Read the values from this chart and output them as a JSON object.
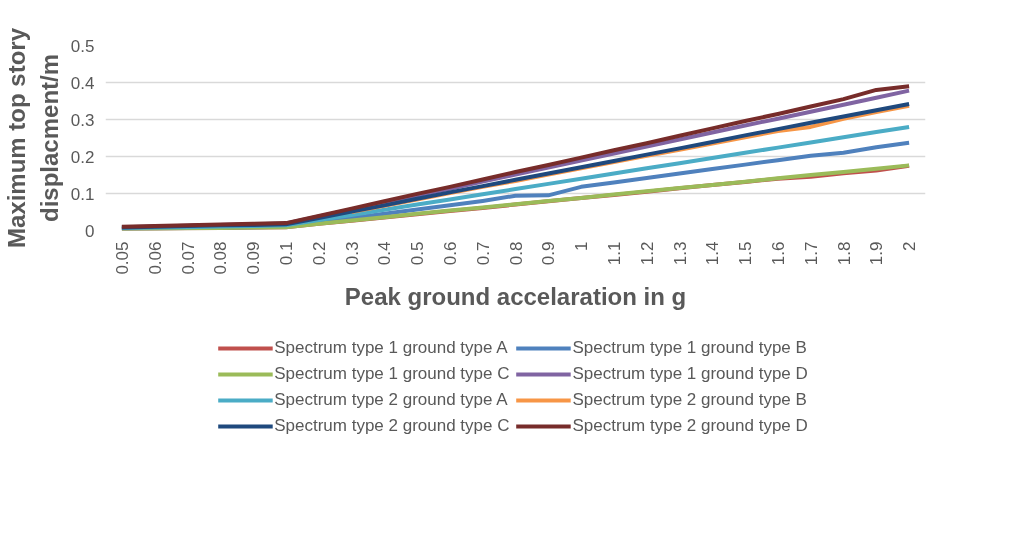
{
  "chart_data": {
    "type": "line",
    "xlabel": "Peak ground accelaration in g",
    "ylabel": "Maximum top story displacment/m",
    "categories": [
      "0.05",
      "0.06",
      "0.07",
      "0.08",
      "0.09",
      "0.1",
      "0.2",
      "0.3",
      "0.4",
      "0.5",
      "0.6",
      "0.7",
      "0.8",
      "0.9",
      "1",
      "1.1",
      "1.2",
      "1.3",
      "1.4",
      "1.5",
      "1.6",
      "1.7",
      "1.8",
      "1.9",
      "2"
    ],
    "ylim": [
      0,
      0.5
    ],
    "yticks": [
      {
        "value": 0,
        "label": "0"
      },
      0.1,
      0.2,
      0.3,
      0.4,
      0.5
    ],
    "grid": "y",
    "legend": "bottom",
    "marker": "none",
    "line_style": "solid",
    "series": [
      {
        "name": "Spectrum type 1 ground type A",
        "color": "#c0504d",
        "values": [
          0.004,
          0.005,
          0.006,
          0.007,
          0.008,
          0.009,
          0.018,
          0.026,
          0.035,
          0.044,
          0.053,
          0.061,
          0.07,
          0.079,
          0.088,
          0.096,
          0.105,
          0.114,
          0.123,
          0.131,
          0.14,
          0.145,
          0.155,
          0.162,
          0.175
        ]
      },
      {
        "name": "Spectrum type 1 ground type B",
        "color": "#4f81bd",
        "values": [
          0.005,
          0.006,
          0.007,
          0.008,
          0.009,
          0.01,
          0.022,
          0.034,
          0.045,
          0.057,
          0.068,
          0.08,
          0.094,
          0.095,
          0.118,
          0.13,
          0.142,
          0.154,
          0.166,
          0.178,
          0.19,
          0.202,
          0.21,
          0.225,
          0.237
        ]
      },
      {
        "name": "Spectrum type 1 ground type C",
        "color": "#9bbb59",
        "values": [
          0.004,
          0.005,
          0.006,
          0.007,
          0.008,
          0.009,
          0.018,
          0.027,
          0.036,
          0.045,
          0.054,
          0.062,
          0.071,
          0.08,
          0.088,
          0.097,
          0.106,
          0.115,
          0.123,
          0.132,
          0.141,
          0.15,
          0.158,
          0.167,
          0.176
        ]
      },
      {
        "name": "Spectrum type 1 ground type D",
        "color": "#8064a2",
        "values": [
          0.009,
          0.011,
          0.013,
          0.015,
          0.017,
          0.019,
          0.038,
          0.057,
          0.076,
          0.095,
          0.113,
          0.132,
          0.151,
          0.17,
          0.189,
          0.208,
          0.227,
          0.246,
          0.265,
          0.284,
          0.302,
          0.321,
          0.34,
          0.359,
          0.378
        ]
      },
      {
        "name": "Spectrum type 2 ground type A",
        "color": "#4bacc6",
        "values": [
          0.007,
          0.008,
          0.009,
          0.011,
          0.012,
          0.014,
          0.028,
          0.042,
          0.056,
          0.07,
          0.084,
          0.098,
          0.112,
          0.126,
          0.14,
          0.154,
          0.168,
          0.182,
          0.196,
          0.21,
          0.224,
          0.238,
          0.252,
          0.266,
          0.28
        ]
      },
      {
        "name": "Spectrum type 2 ground type B",
        "color": "#f79646",
        "values": [
          null,
          null,
          null,
          null,
          null,
          null,
          null,
          0.05,
          0.067,
          0.084,
          0.101,
          0.118,
          0.134,
          0.151,
          0.168,
          0.185,
          0.202,
          0.218,
          0.235,
          0.252,
          0.269,
          0.28,
          0.302,
          0.32,
          0.337
        ]
      },
      {
        "name": "Spectrum type 2 ground type C",
        "color": "#1f497d",
        "values": [
          0.008,
          0.01,
          0.012,
          0.014,
          0.015,
          0.017,
          0.034,
          0.051,
          0.068,
          0.086,
          0.103,
          0.12,
          0.137,
          0.154,
          0.171,
          0.188,
          0.205,
          0.222,
          0.239,
          0.257,
          0.274,
          0.291,
          0.308,
          0.325,
          0.342
        ]
      },
      {
        "name": "Spectrum type 2 ground type D",
        "color": "#772c2a",
        "values": [
          0.01,
          0.012,
          0.014,
          0.016,
          0.018,
          0.02,
          0.039,
          0.059,
          0.079,
          0.099,
          0.118,
          0.138,
          0.158,
          0.177,
          0.197,
          0.217,
          0.236,
          0.256,
          0.276,
          0.296,
          0.315,
          0.335,
          0.355,
          0.38,
          0.39
        ]
      }
    ]
  }
}
